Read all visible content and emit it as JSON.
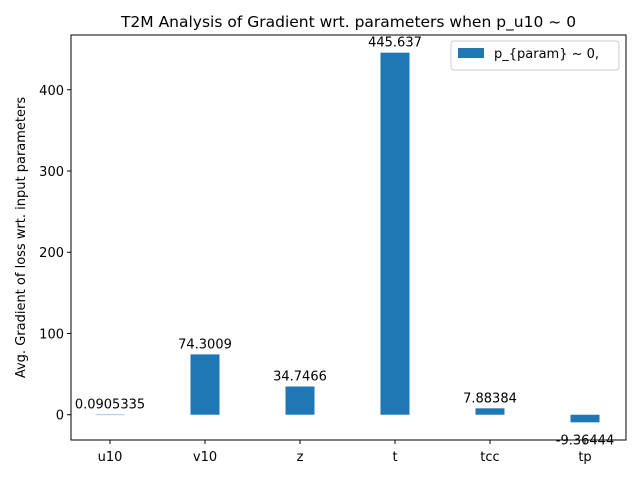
{
  "chart_data": {
    "type": "bar",
    "title": "T2M Analysis of Gradient wrt. parameters when p_u10 ~ 0",
    "xlabel": "",
    "ylabel": "Avg. Gradient of loss wrt. input parameters",
    "categories": [
      "u10",
      "v10",
      "z",
      "t",
      "tcc",
      "tp"
    ],
    "series": [
      {
        "name": "p_{param} ~ 0,",
        "values": [
          0.0905335,
          74.3009,
          34.7466,
          445.637,
          7.88384,
          -9.36444
        ],
        "value_labels": [
          "0.0905335",
          "74.3009",
          "34.7466",
          "445.637",
          "7.88384",
          "-9.36444"
        ],
        "color": "#1f77b4"
      }
    ],
    "ylim": [
      -31.1,
      467.4
    ],
    "yticks": [
      0,
      100,
      200,
      300,
      400
    ],
    "ytick_labels": [
      "0",
      "100",
      "200",
      "300",
      "400"
    ],
    "grid": false,
    "legend_position": "top-right"
  }
}
